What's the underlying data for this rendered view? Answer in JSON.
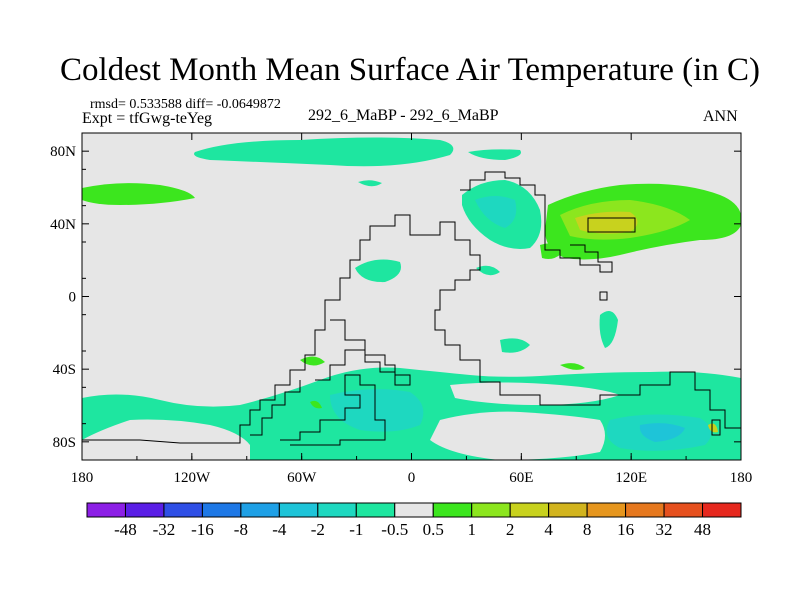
{
  "title": "Coldest Month Mean Surface Air Temperature (in C)",
  "stats": "rmsd= 0.533588  diff= -0.0649872",
  "experiment": "Expt = tfGwg-teYeg",
  "center_label": "292_6_MaBP - 292_6_MaBP",
  "period": "ANN",
  "colors": {
    "background_field": "#e6e6e6",
    "coastline": "#000000",
    "colorbar": [
      "#8c1fe6",
      "#5a1ee6",
      "#2f4fe6",
      "#1e78e6",
      "#1ea0e6",
      "#1ec4d8",
      "#1ed8c0",
      "#1ee6a0",
      "#e6e6e6",
      "#3ce61e",
      "#8ce61e",
      "#c8d21e",
      "#d2b41e",
      "#e6961e",
      "#e6781e",
      "#e6501e",
      "#e6281e"
    ]
  },
  "chart_data": {
    "type": "heatmap",
    "title": "Coldest Month Mean Surface Air Temperature (in C)",
    "subtitle_left": "Expt = tfGwg-teYeg",
    "subtitle_center": "292_6_MaBP - 292_6_MaBP",
    "subtitle_right": "ANN",
    "rmsd": 0.533588,
    "diff": -0.0649872,
    "x_range": [
      -180,
      180
    ],
    "y_range": [
      -90,
      90
    ],
    "x_ticks": [
      -180,
      -120,
      -60,
      0,
      60,
      120,
      180
    ],
    "x_tick_labels": [
      "180",
      "120W",
      "60W",
      "0",
      "60E",
      "120E",
      "180"
    ],
    "y_ticks": [
      80,
      40,
      0,
      -40,
      -80
    ],
    "y_tick_labels": [
      "80N",
      "40N",
      "0",
      "40S",
      "80S"
    ],
    "colorbar_labels": [
      "-48",
      "-32",
      "-16",
      "-8",
      "-4",
      "-2",
      "-1",
      "-0.5",
      "0.5",
      "1",
      "2",
      "4",
      "8",
      "16",
      "32",
      "48"
    ],
    "colorbar_segments": 17,
    "regions": [
      {
        "description": "Arctic ocean band",
        "lon": [
          -120,
          10
        ],
        "lat": [
          73,
          86
        ],
        "value": -0.8
      },
      {
        "description": "North Pacific warm anomaly",
        "lon": [
          75,
          180
        ],
        "lat": [
          20,
          58
        ],
        "value": 1.5
      },
      {
        "description": "Asian interior warm core",
        "lon": [
          100,
          125
        ],
        "lat": [
          35,
          45
        ],
        "value": 3
      },
      {
        "description": "Central-east Asia cool patch",
        "lon": [
          35,
          75
        ],
        "lat": [
          25,
          60
        ],
        "value": -1
      },
      {
        "description": "Southern Ocean cool band",
        "lon": [
          -180,
          180
        ],
        "lat": [
          -90,
          -45
        ],
        "value": -1
      },
      {
        "description": "Tropical scattered cool patches",
        "lon": [
          -40,
          30
        ],
        "lat": [
          -35,
          25
        ],
        "value": -0.7
      }
    ]
  }
}
